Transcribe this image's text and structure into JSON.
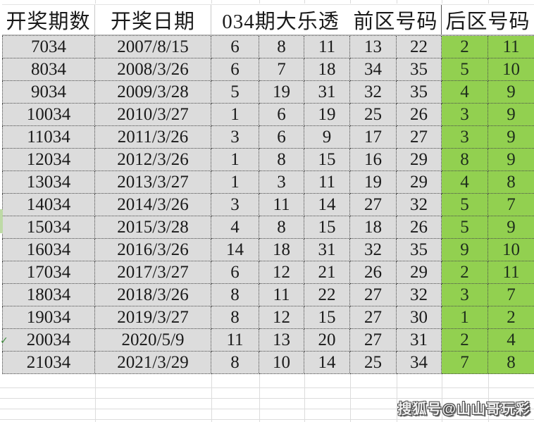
{
  "table": {
    "headers": [
      "开奖期数",
      "开奖日期",
      "034期大乐透",
      "前区号码",
      "后区号码"
    ],
    "rows": [
      {
        "period": "7034",
        "date": "2007/8/15",
        "front": [
          "6",
          "8",
          "11",
          "13",
          "22"
        ],
        "back": [
          "2",
          "11"
        ]
      },
      {
        "period": "8034",
        "date": "2008/3/26",
        "front": [
          "6",
          "7",
          "18",
          "34",
          "35"
        ],
        "back": [
          "5",
          "10"
        ]
      },
      {
        "period": "9034",
        "date": "2009/3/28",
        "front": [
          "5",
          "19",
          "31",
          "32",
          "35"
        ],
        "back": [
          "4",
          "9"
        ]
      },
      {
        "period": "10034",
        "date": "2010/3/27",
        "front": [
          "1",
          "6",
          "19",
          "25",
          "26"
        ],
        "back": [
          "3",
          "9"
        ]
      },
      {
        "period": "11034",
        "date": "2011/3/26",
        "front": [
          "3",
          "6",
          "9",
          "17",
          "27"
        ],
        "back": [
          "3",
          "9"
        ]
      },
      {
        "period": "12034",
        "date": "2012/3/26",
        "front": [
          "1",
          "8",
          "15",
          "16",
          "29"
        ],
        "back": [
          "8",
          "9"
        ]
      },
      {
        "period": "13034",
        "date": "2013/3/27",
        "front": [
          "1",
          "3",
          "11",
          "19",
          "29"
        ],
        "back": [
          "4",
          "8"
        ]
      },
      {
        "period": "14034",
        "date": "2014/3/26",
        "front": [
          "3",
          "11",
          "14",
          "27",
          "32"
        ],
        "back": [
          "5",
          "7"
        ]
      },
      {
        "period": "15034",
        "date": "2015/3/28",
        "front": [
          "4",
          "8",
          "15",
          "18",
          "26"
        ],
        "back": [
          "5",
          "9"
        ]
      },
      {
        "period": "16034",
        "date": "2016/3/26",
        "front": [
          "14",
          "18",
          "31",
          "32",
          "35"
        ],
        "back": [
          "9",
          "10"
        ]
      },
      {
        "period": "17034",
        "date": "2017/3/27",
        "front": [
          "6",
          "12",
          "21",
          "26",
          "29"
        ],
        "back": [
          "2",
          "11"
        ]
      },
      {
        "period": "18034",
        "date": "2018/3/26",
        "front": [
          "8",
          "11",
          "22",
          "27",
          "32"
        ],
        "back": [
          "3",
          "7"
        ]
      },
      {
        "period": "19034",
        "date": "2019/3/27",
        "front": [
          "8",
          "12",
          "15",
          "27",
          "30"
        ],
        "back": [
          "1",
          "2"
        ]
      },
      {
        "period": "20034",
        "date": "2020/5/9",
        "front": [
          "11",
          "13",
          "20",
          "27",
          "31"
        ],
        "back": [
          "2",
          "4"
        ]
      },
      {
        "period": "21034",
        "date": "2021/3/29",
        "front": [
          "8",
          "10",
          "14",
          "25",
          "34"
        ],
        "back": [
          "7",
          "8"
        ]
      }
    ]
  },
  "watermark": {
    "text": "搜狐号@山山哥玩彩"
  },
  "artifacts": {
    "check_glyph": "✓"
  },
  "colors": {
    "cell_gray": "#dcdcdc",
    "zone_green": "#92d050"
  }
}
